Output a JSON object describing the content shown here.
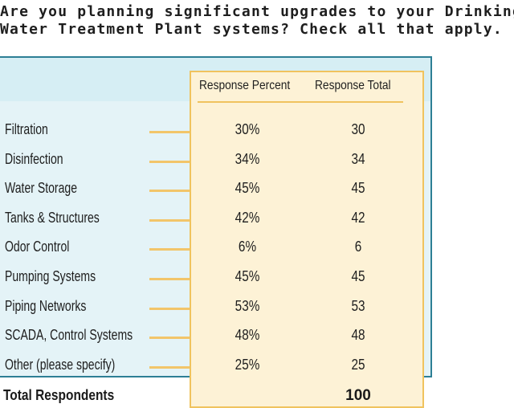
{
  "title_lines": [
    "Are you planning significant upgrades to your Drinking",
    "Water Treatment Plant systems? Check all that apply."
  ],
  "chart_data": {
    "type": "table",
    "columns": [
      "Response Percent",
      "Response Total"
    ],
    "rows": [
      {
        "label": "Filtration",
        "percent": "30%",
        "total": "30"
      },
      {
        "label": "Disinfection",
        "percent": "34%",
        "total": "34"
      },
      {
        "label": "Water Storage",
        "percent": "45%",
        "total": "45"
      },
      {
        "label": "Tanks & Structures",
        "percent": "42%",
        "total": "42"
      },
      {
        "label": "Odor Control",
        "percent": "6%",
        "total": "6"
      },
      {
        "label": "Pumping Systems",
        "percent": "45%",
        "total": "45"
      },
      {
        "label": "Piping Networks",
        "percent": "53%",
        "total": "53"
      },
      {
        "label": "SCADA, Control Systems",
        "percent": "48%",
        "total": "48"
      },
      {
        "label": "Other (please specify)",
        "percent": "25%",
        "total": "25"
      }
    ],
    "total_label": "Total Respondents",
    "total_value": "100"
  },
  "colors": {
    "panel": "#e4f3f7",
    "panel_border": "#2d7f95",
    "column_box": "#fdf2d6",
    "accent": "#f0c35e"
  }
}
